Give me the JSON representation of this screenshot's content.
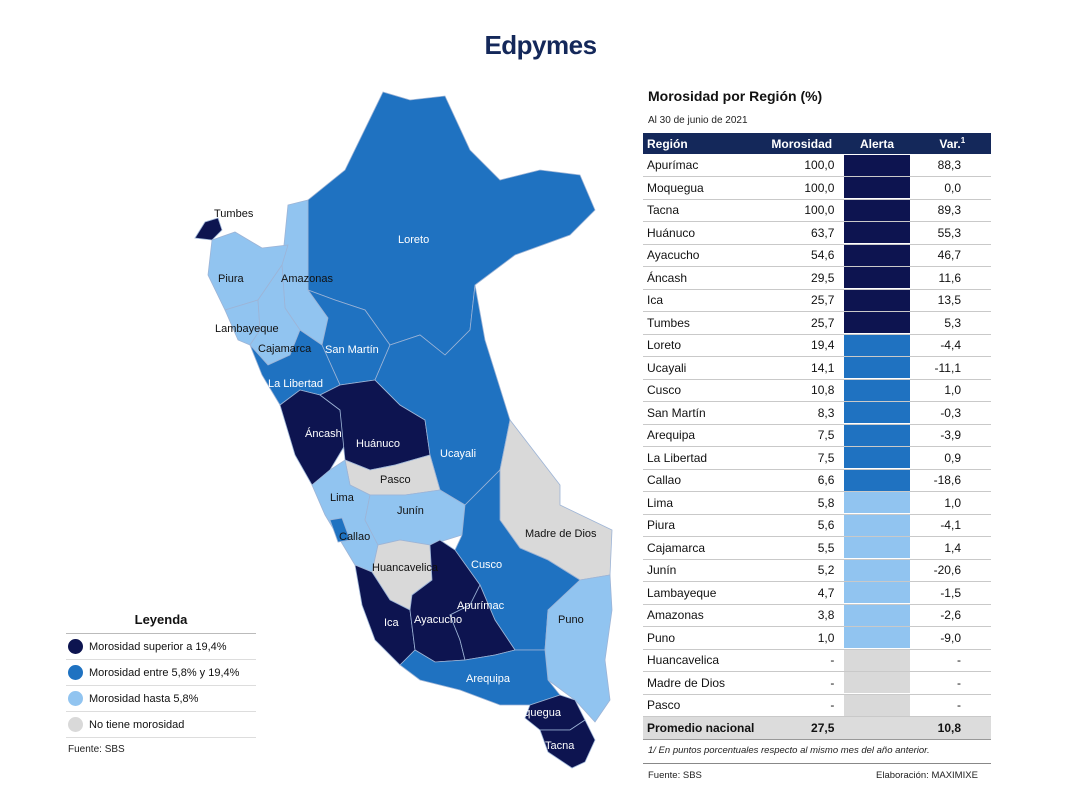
{
  "title": "Edpymes",
  "colors": {
    "high": "#0d1450",
    "mid": "#1f72c1",
    "low": "#91c4f0",
    "none": "#d9d9d9",
    "header": "#14285a"
  },
  "map": {
    "labels": {
      "tumbes": "Tumbes",
      "piura": "Piura",
      "amazonas": "Amazonas",
      "loreto": "Loreto",
      "lambayeque": "Lambayeque",
      "cajamarca": "Cajamarca",
      "san_martin": "San Martín",
      "la_libertad": "La Libertad",
      "ancash": "Áncash",
      "huanuco": "Huánuco",
      "ucayali": "Ucayali",
      "pasco": "Pasco",
      "lima": "Lima",
      "junin": "Junín",
      "callao": "Callao",
      "madre_de_dios": "Madre de Dios",
      "cusco": "Cusco",
      "huancavelica": "Huancavelica",
      "ica": "Ica",
      "ayacucho": "Ayacucho",
      "apurimac": "Apurímac",
      "puno": "Puno",
      "arequipa": "Arequipa",
      "moquegua": "Moquegua",
      "tacna": "Tacna"
    }
  },
  "legend": {
    "title": "Leyenda",
    "items": [
      {
        "label": "Morosidad superior a 19,4%",
        "level": "high"
      },
      {
        "label": "Morosidad entre 5,8% y 19,4%",
        "level": "mid"
      },
      {
        "label": "Morosidad hasta 5,8%",
        "level": "low"
      },
      {
        "label": "No tiene morosidad",
        "level": "none"
      }
    ],
    "source": "Fuente: SBS"
  },
  "table": {
    "title": "Morosidad por Región (%)",
    "date": "Al 30 de junio de 2021",
    "headers": {
      "region": "Región",
      "value": "Morosidad",
      "alert": "Alerta",
      "var": "Var.",
      "var_sup": "1"
    },
    "rows": [
      {
        "region": "Apurímac",
        "value": "100,0",
        "level": "high",
        "var": "88,3"
      },
      {
        "region": "Moquegua",
        "value": "100,0",
        "level": "high",
        "var": "0,0"
      },
      {
        "region": "Tacna",
        "value": "100,0",
        "level": "high",
        "var": "89,3"
      },
      {
        "region": "Huánuco",
        "value": "63,7",
        "level": "high",
        "var": "55,3"
      },
      {
        "region": "Ayacucho",
        "value": "54,6",
        "level": "high",
        "var": "46,7"
      },
      {
        "region": "Áncash",
        "value": "29,5",
        "level": "high",
        "var": "11,6"
      },
      {
        "region": "Ica",
        "value": "25,7",
        "level": "high",
        "var": "13,5"
      },
      {
        "region": "Tumbes",
        "value": "25,7",
        "level": "high",
        "var": "5,3"
      },
      {
        "region": "Loreto",
        "value": "19,4",
        "level": "mid",
        "var": "-4,4"
      },
      {
        "region": "Ucayali",
        "value": "14,1",
        "level": "mid",
        "var": "-11,1"
      },
      {
        "region": "Cusco",
        "value": "10,8",
        "level": "mid",
        "var": "1,0"
      },
      {
        "region": "San Martín",
        "value": "8,3",
        "level": "mid",
        "var": "-0,3"
      },
      {
        "region": "Arequipa",
        "value": "7,5",
        "level": "mid",
        "var": "-3,9"
      },
      {
        "region": "La Libertad",
        "value": "7,5",
        "level": "mid",
        "var": "0,9"
      },
      {
        "region": "Callao",
        "value": "6,6",
        "level": "mid",
        "var": "-18,6"
      },
      {
        "region": "Lima",
        "value": "5,8",
        "level": "low",
        "var": "1,0"
      },
      {
        "region": "Piura",
        "value": "5,6",
        "level": "low",
        "var": "-4,1"
      },
      {
        "region": "Cajamarca",
        "value": "5,5",
        "level": "low",
        "var": "1,4"
      },
      {
        "region": "Junín",
        "value": "5,2",
        "level": "low",
        "var": "-20,6"
      },
      {
        "region": "Lambayeque",
        "value": "4,7",
        "level": "low",
        "var": "-1,5"
      },
      {
        "region": "Amazonas",
        "value": "3,8",
        "level": "low",
        "var": "-2,6"
      },
      {
        "region": "Puno",
        "value": "1,0",
        "level": "low",
        "var": "-9,0"
      },
      {
        "region": "Huancavelica",
        "value": "-",
        "level": "none",
        "var": "-"
      },
      {
        "region": "Madre de Dios",
        "value": "-",
        "level": "none",
        "var": "-"
      },
      {
        "region": "Pasco",
        "value": "-",
        "level": "none",
        "var": "-"
      }
    ],
    "total": {
      "region": "Promedio nacional",
      "value": "27,5",
      "var": "10,8"
    },
    "footnote": "1/ En puntos porcentuales respecto al mismo mes del año anterior.",
    "source": "Fuente: SBS",
    "credit": "Elaboración: MAXIMIXE"
  }
}
